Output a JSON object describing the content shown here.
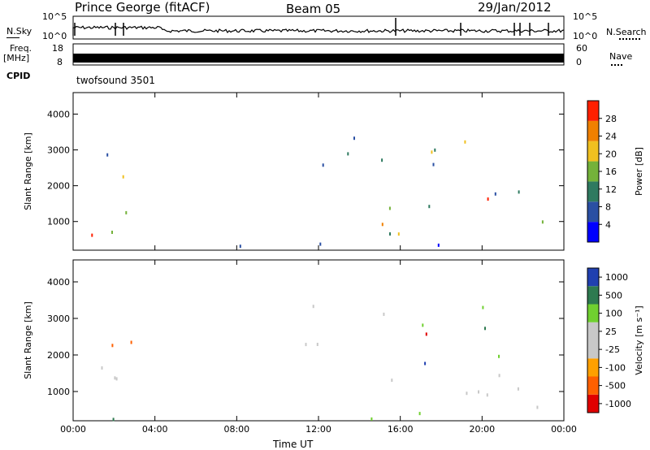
{
  "header": {
    "station": "Prince George (fitACF)",
    "beam": "Beam 05",
    "date": "29/Jan/2012"
  },
  "top_panels": {
    "nsky_label": "N.Sky",
    "nsearch_label": "N.Search",
    "noise_ticks": [
      "10^5",
      "10^0"
    ],
    "freq_label": "Freq.",
    "freq_unit": "[MHz]",
    "freq_ticks": [
      "18",
      "8"
    ],
    "nave_label": "Nave",
    "nave_ticks": [
      "60",
      "0"
    ],
    "cpid_label": "CPID",
    "cpid_value": "twofsound 3501"
  },
  "legend_line_styles": {
    "nsky": "solid",
    "nsearch": "dotted",
    "freq": "solid",
    "nave": "dotted"
  },
  "chart_data": [
    {
      "type": "heatmap",
      "panel": "power",
      "ylabel": "Slant Range [km]",
      "ylim": [
        200,
        4600
      ],
      "yticks": [
        1000,
        2000,
        3000,
        4000
      ],
      "xlabel": "Time UT",
      "xlim": [
        0,
        24
      ],
      "xticks": [
        "00:00",
        "04:00",
        "08:00",
        "12:00",
        "16:00",
        "20:00",
        "00:00"
      ],
      "colorbar": {
        "label": "Power [dB]",
        "ticks": [
          "28",
          "24",
          "20",
          "16",
          "12",
          "8",
          "4"
        ],
        "colors": [
          "#0000ff",
          "#2a4fa3",
          "#2f7a60",
          "#74b23a",
          "#f0c020",
          "#f08000",
          "#ff2000"
        ]
      }
    },
    {
      "type": "heatmap",
      "panel": "velocity",
      "ylabel": "Slant Range [km]",
      "ylim": [
        200,
        4600
      ],
      "yticks": [
        1000,
        2000,
        3000,
        4000
      ],
      "xlabel": "Time UT",
      "xlim": [
        0,
        24
      ],
      "xticks": [
        "00:00",
        "04:00",
        "08:00",
        "12:00",
        "16:00",
        "20:00",
        "00:00"
      ],
      "colorbar": {
        "label": "Velocity [m s⁻¹]",
        "ticks": [
          "1000",
          "500",
          "100",
          "25",
          "-25",
          "-100",
          "-500",
          "-1000"
        ],
        "colors": [
          "#e00000",
          "#ff6000",
          "#ffa000",
          "#c8c8c8",
          "#c8c8c8",
          "#70d030",
          "#2e7a50",
          "#2040b0"
        ]
      }
    }
  ]
}
